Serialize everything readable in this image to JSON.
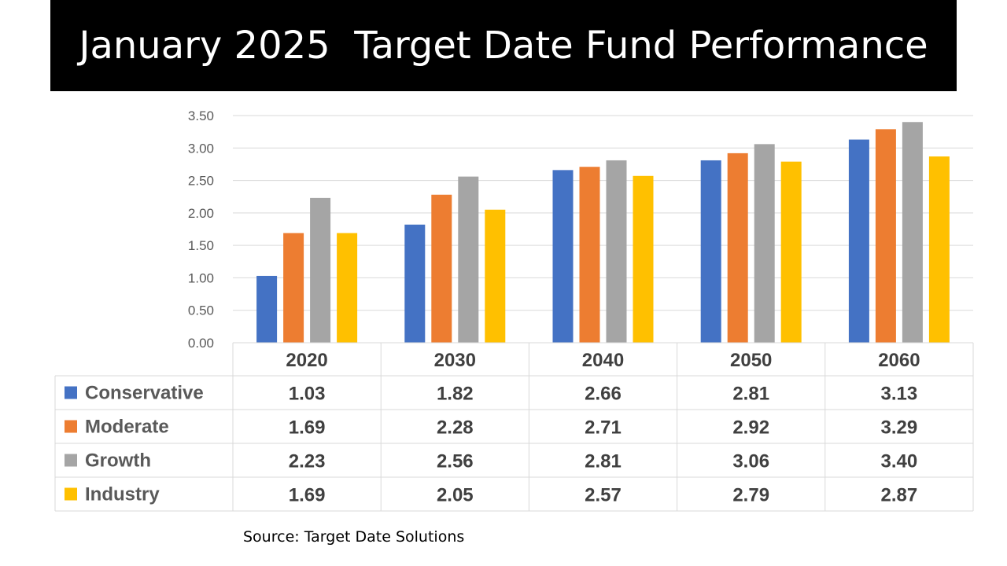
{
  "slide": {
    "title": "January 2025  Target Date Fund Performance",
    "source": "Source: Target Date Solutions"
  },
  "chart_data": {
    "type": "bar",
    "categories": [
      "2020",
      "2030",
      "2040",
      "2050",
      "2060"
    ],
    "series": [
      {
        "name": "Conservative",
        "color": "#4472C4",
        "values": [
          1.03,
          1.82,
          2.66,
          2.81,
          3.13
        ]
      },
      {
        "name": "Moderate",
        "color": "#ED7D31",
        "values": [
          1.69,
          2.28,
          2.71,
          2.92,
          3.29
        ]
      },
      {
        "name": "Growth",
        "color": "#A5A5A5",
        "values": [
          2.23,
          2.56,
          2.81,
          3.06,
          3.4
        ]
      },
      {
        "name": "Industry",
        "color": "#FFC000",
        "values": [
          1.69,
          2.05,
          2.57,
          2.79,
          2.87
        ]
      }
    ],
    "y_ticks": [
      "0.00",
      "0.50",
      "1.00",
      "1.50",
      "2.00",
      "2.50",
      "3.00",
      "3.50"
    ],
    "table_values": [
      [
        "1.03",
        "1.82",
        "2.66",
        "2.81",
        "3.13"
      ],
      [
        "1.69",
        "2.28",
        "2.71",
        "2.92",
        "3.29"
      ],
      [
        "2.23",
        "2.56",
        "2.81",
        "3.06",
        "3.40"
      ],
      [
        "1.69",
        "2.05",
        "2.57",
        "2.79",
        "2.87"
      ]
    ],
    "ylim": [
      0,
      3.5
    ],
    "grid": true,
    "legend": "data-table-below"
  }
}
